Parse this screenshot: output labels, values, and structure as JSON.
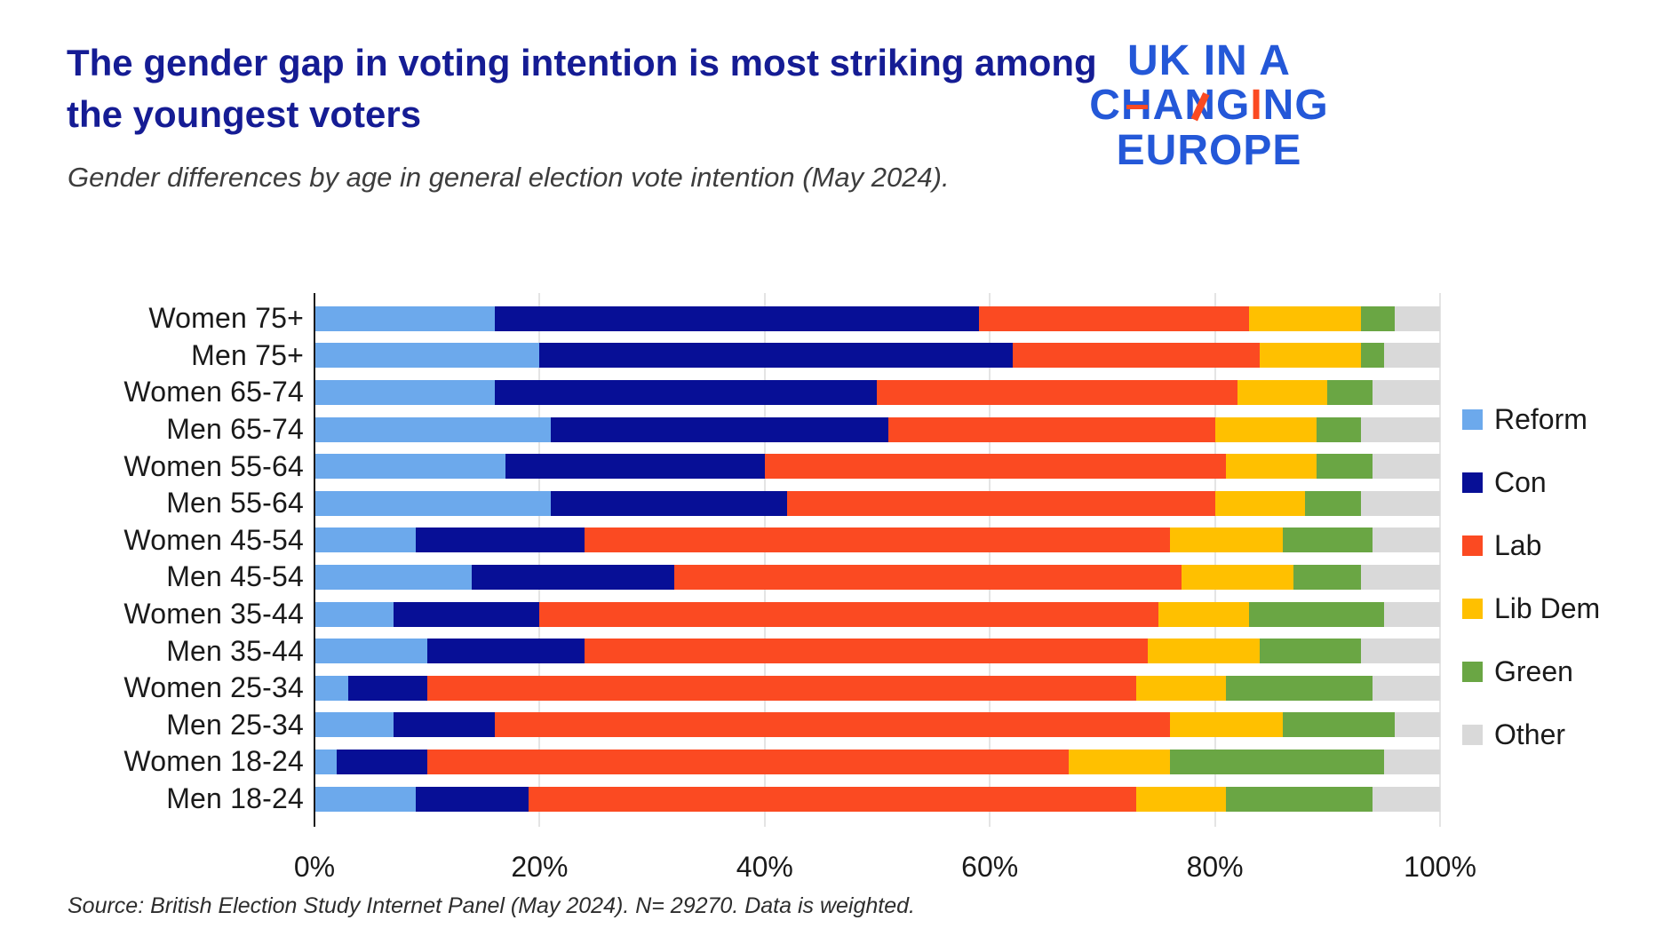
{
  "header": {
    "title_line1": "The gender gap in voting intention is most striking among",
    "title_line2": "the youngest voters",
    "subtitle": "Gender differences by age in general election vote intention (May 2024)."
  },
  "logo": {
    "line1": "UK IN A",
    "line2": "CHANGING",
    "line3": "EUROPE",
    "blue": "#2458D8",
    "orange": "#FB4A22",
    "crossbar_letter_index": 1,
    "diagonal_letter_index": 3,
    "orange_letter_index": 5
  },
  "source": "Source: British Election Study Internet Panel (May 2024). N= 29270. Data is weighted.",
  "chart_data": {
    "type": "bar",
    "stacked": true,
    "orientation": "horizontal",
    "grid": true,
    "legend_position": "right",
    "categories": [
      "Women 75+",
      "Men 75+",
      "Women 65-74",
      "Men 65-74",
      "Women 55-64",
      "Men 55-64",
      "Women 45-54",
      "Men 45-54",
      "Women 35-44",
      "Men 35-44",
      "Women 25-34",
      "Men 25-34",
      "Women 18-24",
      "Men 18-24"
    ],
    "series": [
      {
        "name": "Reform",
        "color": "#6CA9EC",
        "values": [
          16,
          20,
          16,
          21,
          17,
          21,
          9,
          14,
          7,
          10,
          3,
          7,
          2,
          9
        ]
      },
      {
        "name": "Con",
        "color": "#070F96",
        "values": [
          43,
          42,
          34,
          30,
          23,
          21,
          15,
          18,
          13,
          14,
          7,
          9,
          8,
          10
        ]
      },
      {
        "name": "Lab",
        "color": "#FB4A22",
        "values": [
          24,
          22,
          32,
          29,
          41,
          38,
          52,
          45,
          55,
          50,
          63,
          60,
          57,
          54
        ]
      },
      {
        "name": "Lib Dem",
        "color": "#FFC000",
        "values": [
          10,
          9,
          8,
          9,
          8,
          8,
          10,
          10,
          8,
          10,
          8,
          10,
          9,
          8
        ]
      },
      {
        "name": "Green",
        "color": "#6AA644",
        "values": [
          3,
          2,
          4,
          4,
          5,
          5,
          8,
          6,
          12,
          9,
          13,
          10,
          19,
          13
        ]
      },
      {
        "name": "Other",
        "color": "#D9D9D9",
        "values": [
          4,
          5,
          6,
          7,
          6,
          7,
          6,
          7,
          5,
          7,
          6,
          4,
          5,
          6
        ]
      }
    ],
    "x_axis": {
      "ticks": [
        "0%",
        "20%",
        "40%",
        "60%",
        "80%",
        "100%"
      ],
      "tick_values": [
        0,
        20,
        40,
        60,
        80,
        100
      ],
      "range": [
        0,
        100
      ]
    }
  }
}
